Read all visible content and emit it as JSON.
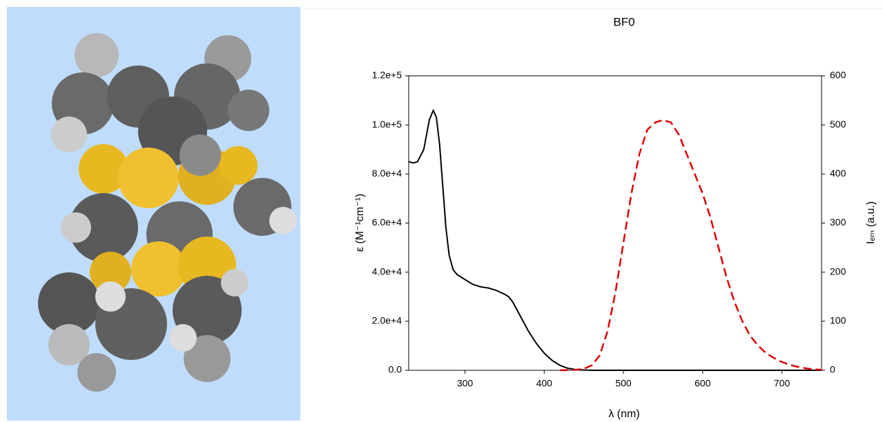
{
  "chart_data": {
    "type": "line",
    "title": "BF0",
    "xlabel": "λ (nm)",
    "ylabel": "ε (M⁻¹cm⁻¹)",
    "y2label": "Iₑₘ (a.u.)",
    "xlim": [
      229,
      750
    ],
    "xticks": [
      300,
      400,
      500,
      600,
      700
    ],
    "ylim": [
      0,
      120000
    ],
    "yticks": [
      {
        "value": 0,
        "label": "0.0"
      },
      {
        "value": 20000,
        "label": "2.0e+4"
      },
      {
        "value": 40000,
        "label": "4.0e+4"
      },
      {
        "value": 60000,
        "label": "6.0e+4"
      },
      {
        "value": 80000,
        "label": "8.0e+4"
      },
      {
        "value": 100000,
        "label": "1.0e+5"
      },
      {
        "value": 120000,
        "label": "1.2e+5"
      }
    ],
    "y2lim": [
      0,
      600
    ],
    "y2ticks": [
      0,
      100,
      200,
      300,
      400,
      500,
      600
    ],
    "grid": false,
    "series": [
      {
        "color": "#000000",
        "dash": false,
        "x": [
          229,
          235,
          240,
          248,
          255,
          260,
          264,
          268,
          272,
          276,
          280,
          285,
          290,
          300,
          310,
          320,
          330,
          340,
          350,
          355,
          360,
          370,
          380,
          390,
          400,
          410,
          420,
          430,
          440,
          450,
          460,
          500,
          600,
          700,
          750
        ],
        "values": [
          85000,
          84500,
          85000,
          90000,
          102000,
          106000,
          103000,
          92000,
          75000,
          58000,
          47000,
          41000,
          39000,
          37000,
          35000,
          34000,
          33500,
          32500,
          31000,
          30000,
          28000,
          22000,
          16000,
          11000,
          7000,
          4000,
          2000,
          800,
          300,
          100,
          0,
          0,
          0,
          0,
          0
        ]
      },
      {
        "color": "#e00000",
        "dash": true,
        "axis": "y2",
        "x": [
          420,
          440,
          450,
          460,
          470,
          480,
          490,
          500,
          510,
          520,
          530,
          540,
          550,
          560,
          570,
          580,
          590,
          600,
          610,
          620,
          630,
          640,
          650,
          660,
          670,
          680,
          690,
          700,
          710,
          720,
          730,
          740,
          750
        ],
        "values": [
          0,
          1,
          3,
          10,
          30,
          80,
          160,
          260,
          360,
          440,
          490,
          505,
          510,
          505,
          480,
          440,
          400,
          360,
          310,
          250,
          190,
          140,
          100,
          70,
          50,
          35,
          25,
          17,
          11,
          7,
          4,
          2,
          1
        ]
      }
    ]
  }
}
